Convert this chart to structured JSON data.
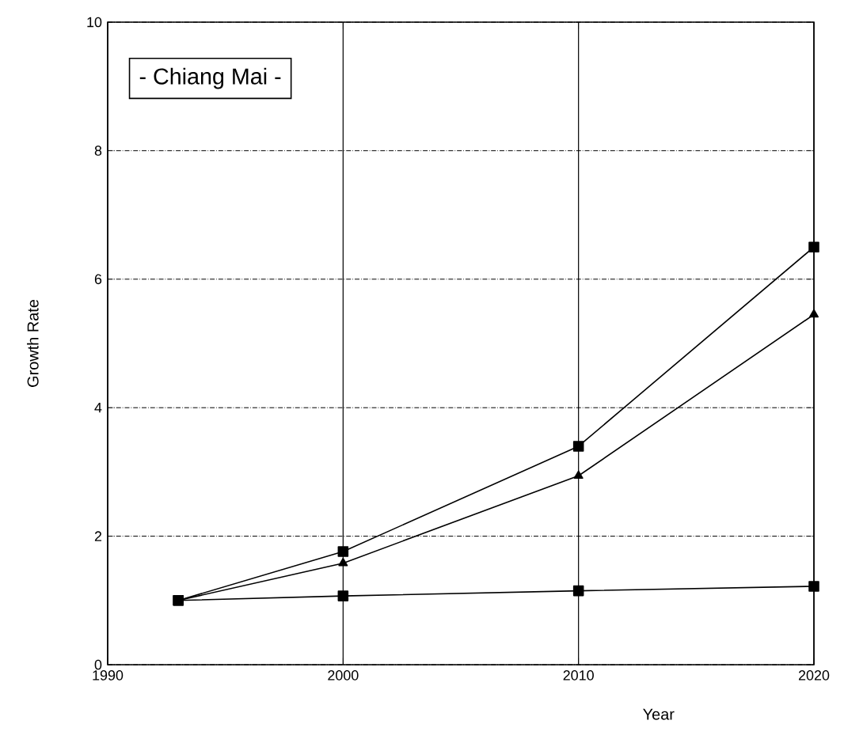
{
  "chart_data": {
    "type": "line",
    "title": "- Chiang Mai -",
    "xlabel": "Year",
    "ylabel": "Growth Rate",
    "xlim": [
      1990,
      2020
    ],
    "xticks": [
      1990,
      2000,
      2010,
      2020
    ],
    "ylim": [
      0,
      10
    ],
    "yticks": [
      0,
      2,
      4,
      6,
      8,
      10
    ],
    "grid": true,
    "line_style": "solid",
    "series": [
      {
        "color": "#000000",
        "marker": "square",
        "x": [
          1993,
          2000,
          2010,
          2020
        ],
        "values": [
          1.0,
          1.76,
          3.4,
          6.5
        ]
      },
      {
        "color": "#000000",
        "marker": "square",
        "x": [
          1993,
          2000,
          2010,
          2020
        ],
        "values": [
          1.0,
          1.07,
          1.15,
          1.22
        ]
      },
      {
        "color": "#000000",
        "marker": "triangle",
        "x": [
          1993,
          2000,
          2010,
          2020
        ],
        "values": [
          1.0,
          1.58,
          2.94,
          5.45
        ]
      }
    ]
  }
}
